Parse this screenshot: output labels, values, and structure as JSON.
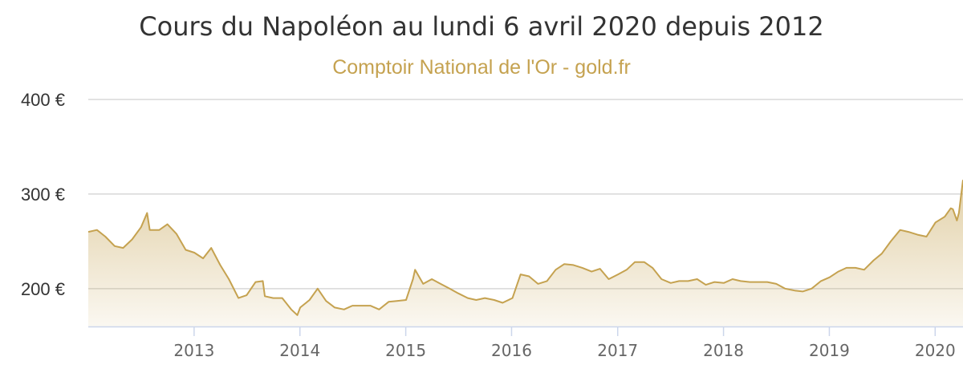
{
  "colors": {
    "accent": "#c5a250",
    "grid": "#d8d8d8",
    "axis": "#ccd6eb"
  },
  "chart_data": {
    "type": "area",
    "title": "Cours du Napoléon au lundi 6 avril 2020 depuis 2012",
    "subtitle": "Comptoir National de l'Or - gold.fr",
    "xlabel": "",
    "ylabel": "",
    "ylim": [
      160,
      400
    ],
    "xlim": [
      "2012-01-02",
      "2020-04-06"
    ],
    "y_ticks": [
      {
        "value": 200,
        "label": "200 €"
      },
      {
        "value": 300,
        "label": "300 €"
      },
      {
        "value": 400,
        "label": "400 €"
      }
    ],
    "x_ticks": [
      {
        "date": "2013-01-01",
        "label": "2013"
      },
      {
        "date": "2014-01-01",
        "label": "2014"
      },
      {
        "date": "2015-01-01",
        "label": "2015"
      },
      {
        "date": "2016-01-01",
        "label": "2016"
      },
      {
        "date": "2017-01-01",
        "label": "2017"
      },
      {
        "date": "2018-01-01",
        "label": "2018"
      },
      {
        "date": "2019-01-01",
        "label": "2019"
      },
      {
        "date": "2020-01-01",
        "label": "2020"
      }
    ],
    "grid": true,
    "legend": "none",
    "series": [
      {
        "x": [
          "2012-01-02",
          "2012-02-01",
          "2012-03-01",
          "2012-04-02",
          "2012-05-01",
          "2012-06-01",
          "2012-07-02",
          "2012-07-23",
          "2012-08-01",
          "2012-09-03",
          "2012-10-01",
          "2012-11-01",
          "2012-12-03",
          "2013-01-02",
          "2013-02-01",
          "2013-03-01",
          "2013-04-01",
          "2013-05-01",
          "2013-06-03",
          "2013-07-01",
          "2013-08-01",
          "2013-08-26",
          "2013-09-02",
          "2013-10-01",
          "2013-11-01",
          "2013-12-02",
          "2013-12-23",
          "2014-01-02",
          "2014-02-03",
          "2014-03-03",
          "2014-04-01",
          "2014-05-01",
          "2014-06-02",
          "2014-07-01",
          "2014-08-01",
          "2014-09-01",
          "2014-10-01",
          "2014-11-03",
          "2014-12-01",
          "2015-01-02",
          "2015-01-26",
          "2015-02-02",
          "2015-03-02",
          "2015-04-01",
          "2015-05-01",
          "2015-06-01",
          "2015-07-01",
          "2015-08-03",
          "2015-09-01",
          "2015-10-01",
          "2015-11-02",
          "2015-12-01",
          "2016-01-04",
          "2016-02-01",
          "2016-03-01",
          "2016-04-01",
          "2016-05-02",
          "2016-06-01",
          "2016-07-01",
          "2016-08-01",
          "2016-09-01",
          "2016-10-03",
          "2016-11-01",
          "2016-12-01",
          "2017-01-02",
          "2017-02-01",
          "2017-03-01",
          "2017-04-03",
          "2017-05-01",
          "2017-06-01",
          "2017-07-03",
          "2017-08-01",
          "2017-09-01",
          "2017-10-02",
          "2017-11-01",
          "2017-12-01",
          "2018-01-02",
          "2018-02-01",
          "2018-03-01",
          "2018-04-02",
          "2018-05-01",
          "2018-06-01",
          "2018-07-02",
          "2018-08-01",
          "2018-09-03",
          "2018-10-01",
          "2018-11-01",
          "2018-12-03",
          "2019-01-02",
          "2019-02-01",
          "2019-03-01",
          "2019-04-01",
          "2019-05-01",
          "2019-06-03",
          "2019-07-01",
          "2019-08-01",
          "2019-09-02",
          "2019-10-01",
          "2019-11-01",
          "2019-12-02",
          "2020-01-02",
          "2020-02-03",
          "2020-02-24",
          "2020-03-02",
          "2020-03-16",
          "2020-03-23",
          "2020-04-06"
        ],
        "y": [
          260,
          262,
          255,
          245,
          243,
          252,
          265,
          280,
          262,
          262,
          268,
          258,
          241,
          238,
          232,
          243,
          225,
          210,
          190,
          193,
          207,
          208,
          192,
          190,
          190,
          178,
          172,
          180,
          188,
          200,
          187,
          180,
          178,
          182,
          182,
          182,
          178,
          186,
          187,
          188,
          210,
          220,
          205,
          210,
          205,
          200,
          195,
          190,
          188,
          190,
          188,
          185,
          190,
          215,
          213,
          205,
          208,
          220,
          226,
          225,
          222,
          218,
          221,
          210,
          215,
          220,
          228,
          228,
          222,
          210,
          206,
          208,
          208,
          210,
          204,
          207,
          206,
          210,
          208,
          207,
          207,
          207,
          205,
          200,
          198,
          197,
          200,
          208,
          212,
          218,
          222,
          222,
          220,
          230,
          237,
          250,
          262,
          260,
          257,
          255,
          270,
          276,
          285,
          284,
          272,
          280,
          315
        ]
      }
    ]
  }
}
